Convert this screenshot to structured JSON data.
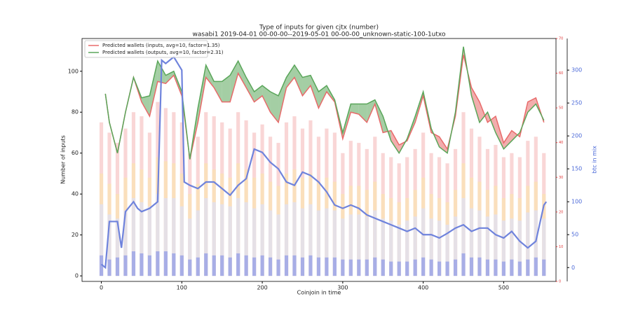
{
  "chart_data": {
    "type": "line",
    "title": "Type of inputs for given cjtx (number)",
    "subtitle": "wasabi1 2019-04-01 00-00-00--2019-05-01 00-00-00_unknown-static-100-1utxo",
    "x_label": "Coinjoin in time",
    "y_label": "Number of inputs",
    "y2_label": "btc in mix",
    "legend": "upper left",
    "xlim": [
      -24,
      565
    ],
    "xticks": [
      0,
      100,
      200,
      300,
      400,
      500
    ],
    "ylim": [
      -2.7,
      116
    ],
    "yticks": [
      0,
      20,
      40,
      60,
      80,
      100
    ],
    "y2lim": [
      -21,
      348
    ],
    "y2ticks": [
      0,
      50,
      100,
      150,
      200,
      250,
      300
    ],
    "y2_color": "#4a68d8",
    "y3lim": [
      0,
      70
    ],
    "y3ticks": [
      0,
      10,
      20,
      30,
      40,
      50,
      60,
      70
    ],
    "y3_color": "#e03a3a",
    "x": [
      5,
      10,
      20,
      30,
      40,
      50,
      60,
      70,
      80,
      90,
      100,
      110,
      120,
      130,
      140,
      150,
      160,
      170,
      180,
      190,
      200,
      210,
      220,
      230,
      240,
      250,
      260,
      270,
      280,
      290,
      300,
      310,
      320,
      330,
      340,
      350,
      360,
      370,
      380,
      390,
      400,
      410,
      420,
      430,
      440,
      450,
      460,
      470,
      480,
      490,
      500,
      510,
      520,
      530,
      540,
      550
    ],
    "series": [
      {
        "name": "Predicted wallets (inputs, avg=10, factor=1.35)",
        "color": "#e86a6a",
        "values": [
          89,
          75,
          60,
          80,
          97,
          85,
          78,
          95,
          94,
          98,
          88,
          57,
          75,
          97,
          92,
          85,
          85,
          99,
          92,
          85,
          88,
          80,
          75,
          92,
          97,
          88,
          93,
          82,
          90,
          85,
          67,
          80,
          79,
          75,
          84,
          70,
          71,
          64,
          66,
          75,
          88,
          70,
          68,
          62,
          78,
          108,
          92,
          85,
          75,
          78,
          65,
          71,
          68,
          85,
          87,
          75
        ]
      },
      {
        "name": "Predicted wallets (outputs, avg=10, factor=2.31)",
        "color": "#5aa65a",
        "values": [
          89,
          75,
          60,
          80,
          97,
          87,
          88,
          105,
          98,
          100,
          90,
          57,
          82,
          103,
          95,
          95,
          98,
          105,
          97,
          90,
          93,
          90,
          88,
          97,
          103,
          97,
          98,
          90,
          93,
          86,
          70,
          84,
          84,
          84,
          86,
          78,
          66,
          60,
          67,
          78,
          90,
          72,
          63,
          60,
          80,
          112,
          88,
          75,
          80,
          70,
          62,
          66,
          70,
          80,
          84,
          76
        ]
      },
      {
        "axis": "y2",
        "color": "#6f83dc",
        "x": [
          0,
          5,
          10,
          20,
          25,
          30,
          40,
          45,
          50,
          60,
          70,
          75,
          80,
          90,
          100,
          103,
          110,
          120,
          130,
          140,
          150,
          160,
          170,
          180,
          190,
          200,
          210,
          220,
          230,
          240,
          250,
          260,
          270,
          280,
          290,
          300,
          310,
          320,
          330,
          340,
          350,
          360,
          370,
          380,
          390,
          400,
          410,
          420,
          430,
          440,
          450,
          460,
          470,
          480,
          490,
          500,
          510,
          520,
          530,
          540,
          550,
          553
        ],
        "values": [
          5,
          0,
          70,
          70,
          30,
          85,
          100,
          90,
          85,
          90,
          100,
          315,
          310,
          320,
          300,
          130,
          125,
          120,
          130,
          130,
          120,
          110,
          125,
          135,
          180,
          175,
          160,
          150,
          130,
          125,
          145,
          140,
          130,
          115,
          95,
          90,
          95,
          90,
          80,
          75,
          70,
          65,
          60,
          55,
          60,
          50,
          50,
          45,
          52,
          60,
          65,
          55,
          60,
          60,
          50,
          45,
          55,
          40,
          30,
          40,
          95,
          100
        ]
      }
    ],
    "bars": {
      "x": [
        0,
        10,
        20,
        30,
        40,
        50,
        60,
        70,
        80,
        90,
        100,
        110,
        120,
        130,
        140,
        150,
        160,
        170,
        180,
        190,
        200,
        210,
        220,
        230,
        240,
        250,
        260,
        270,
        280,
        290,
        300,
        310,
        320,
        330,
        340,
        350,
        360,
        370,
        380,
        390,
        400,
        410,
        420,
        430,
        440,
        450,
        460,
        470,
        480,
        490,
        500,
        510,
        520,
        530,
        540,
        550
      ],
      "series": [
        {
          "color": "#f6c4c4",
          "values": [
            75,
            70,
            65,
            72,
            80,
            78,
            70,
            85,
            82,
            80,
            75,
            60,
            68,
            80,
            78,
            75,
            72,
            80,
            76,
            70,
            74,
            68,
            65,
            75,
            78,
            72,
            76,
            68,
            72,
            70,
            60,
            66,
            65,
            62,
            68,
            60,
            58,
            55,
            58,
            62,
            70,
            60,
            58,
            55,
            62,
            80,
            72,
            68,
            62,
            64,
            58,
            60,
            58,
            66,
            68,
            60
          ]
        },
        {
          "color": "#fbe3b0",
          "values": [
            50,
            45,
            40,
            48,
            55,
            52,
            48,
            58,
            56,
            55,
            50,
            40,
            45,
            55,
            52,
            50,
            48,
            55,
            52,
            48,
            50,
            46,
            44,
            50,
            52,
            48,
            50,
            46,
            48,
            46,
            40,
            44,
            44,
            42,
            46,
            40,
            38,
            36,
            38,
            42,
            48,
            40,
            38,
            36,
            42,
            55,
            48,
            46,
            42,
            44,
            38,
            40,
            38,
            44,
            46,
            40
          ]
        },
        {
          "color": "#dcdff8",
          "values": [
            35,
            30,
            28,
            32,
            38,
            36,
            34,
            40,
            38,
            38,
            34,
            28,
            32,
            38,
            36,
            35,
            34,
            38,
            36,
            33,
            35,
            32,
            30,
            35,
            36,
            33,
            35,
            32,
            33,
            32,
            28,
            30,
            30,
            29,
            32,
            28,
            27,
            25,
            27,
            29,
            33,
            28,
            27,
            25,
            29,
            38,
            33,
            32,
            29,
            30,
            27,
            28,
            27,
            31,
            32,
            28
          ]
        },
        {
          "color": "#8f99e6",
          "values": [
            10,
            8,
            9,
            10,
            12,
            11,
            10,
            12,
            12,
            11,
            10,
            8,
            9,
            11,
            10,
            10,
            9,
            11,
            10,
            9,
            10,
            9,
            8,
            10,
            10,
            9,
            10,
            9,
            9,
            9,
            8,
            8,
            8,
            8,
            9,
            8,
            7,
            7,
            7,
            8,
            9,
            8,
            7,
            7,
            8,
            11,
            9,
            9,
            8,
            8,
            7,
            8,
            7,
            8,
            9,
            8
          ]
        }
      ]
    }
  }
}
